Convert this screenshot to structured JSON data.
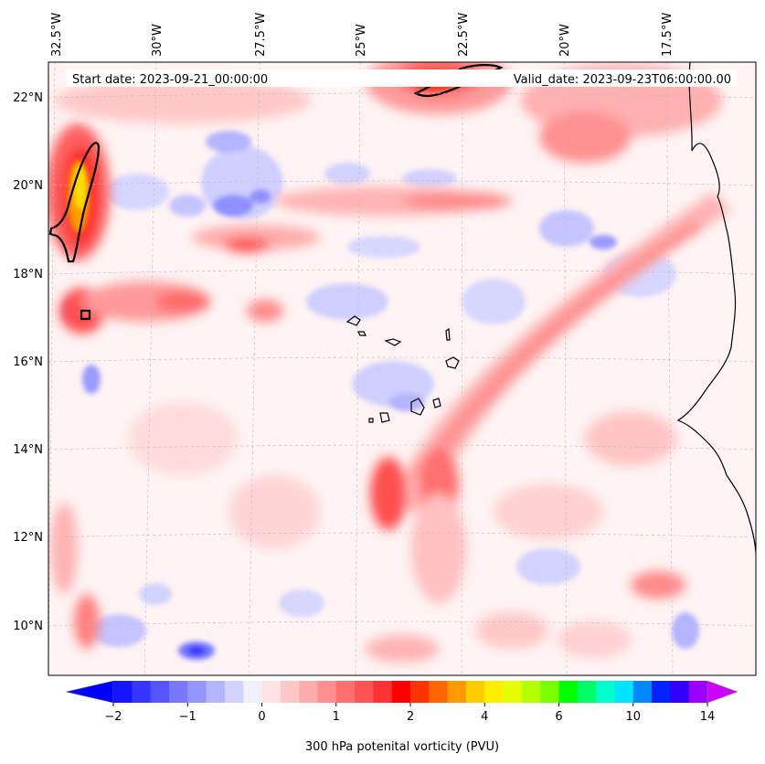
{
  "header": {
    "start_date": "Start date: 2023-09-21_00:00:00",
    "valid_date": "Valid_date: 2023-09-23T06:00:00.00"
  },
  "longitude_ticks": [
    "32.5°W",
    "30°W",
    "27.5°W",
    "25°W",
    "22.5°W",
    "20°W",
    "17.5°W"
  ],
  "latitude_ticks": [
    "22°N",
    "20°N",
    "18°N",
    "16°N",
    "14°N",
    "12°N",
    "10°N"
  ],
  "colorbar": {
    "title": "300 hPa potenital vorticity (PVU)",
    "tick_labels": [
      "−2",
      "−1",
      "0",
      "1",
      "2",
      "4",
      "6",
      "10",
      "14"
    ],
    "colors": [
      "#1515ff",
      "#3535ff",
      "#5555ff",
      "#7878ff",
      "#9595ff",
      "#b4b4ff",
      "#d2d2ff",
      "#f0f0ff",
      "#ffe4e4",
      "#ffc8c8",
      "#ffacac",
      "#ff8f8f",
      "#ff6f6f",
      "#ff5252",
      "#ff3333",
      "#ff0000",
      "#ff3300",
      "#ff6600",
      "#ff9900",
      "#ffcc00",
      "#ffee00",
      "#e6ff00",
      "#b4ff00",
      "#7aff00",
      "#00ff00",
      "#00ff66",
      "#00ffcc",
      "#00e5ff",
      "#0088ff",
      "#0022ff",
      "#3300ff",
      "#9900ff"
    ],
    "under_color": "#0000ff",
    "over_color": "#cc00ff"
  }
}
